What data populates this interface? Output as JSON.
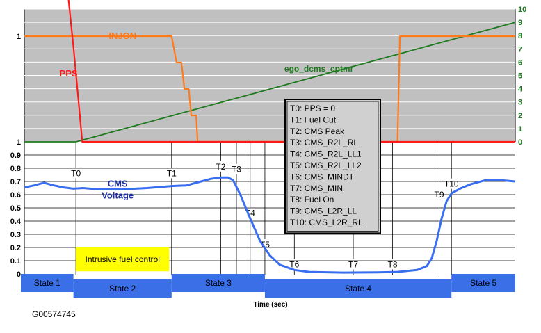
{
  "figure_id": "G00574745",
  "chart_data": {
    "type": "line",
    "xlabel": "Time (sec)",
    "y_left_upper_ticks": [
      "1",
      "0"
    ],
    "y_left_lower_ticks": [
      "1",
      "0.9",
      "0.8",
      "0.7",
      "0.6",
      "0.5",
      "0.4",
      "0.3",
      "0.2",
      "0.1",
      "0"
    ],
    "y_right_ticks": [
      "10",
      "9",
      "8",
      "7",
      "6",
      "5",
      "4",
      "3",
      "2",
      "1",
      "0"
    ],
    "xlim": [
      0,
      100
    ],
    "grid": true,
    "series": [
      {
        "name": "PPS",
        "color": "#ff1a1a",
        "axis": "left-upper",
        "points": [
          [
            9,
            1.35
          ],
          [
            10,
            0.9
          ],
          [
            11,
            0.4
          ],
          [
            11.8,
            0
          ],
          [
            100,
            0
          ]
        ]
      },
      {
        "name": "INJON",
        "color": "#ff7a1a",
        "axis": "left-upper",
        "points": [
          [
            0,
            1
          ],
          [
            30,
            1
          ],
          [
            31,
            0.75
          ],
          [
            32,
            0.75
          ],
          [
            32.6,
            0.5
          ],
          [
            33.5,
            0.5
          ],
          [
            34,
            0.25
          ],
          [
            35,
            0.25
          ],
          [
            35.3,
            0
          ],
          [
            76,
            0
          ],
          [
            76.5,
            1
          ],
          [
            100,
            1
          ]
        ]
      },
      {
        "name": "ego_dcms_cptmr",
        "color": "#1f7a1f",
        "axis": "right",
        "points": [
          [
            0,
            0
          ],
          [
            10.5,
            0
          ],
          [
            100,
            9
          ]
        ]
      },
      {
        "name": "CMS Voltage",
        "color": "#3a6ef0",
        "axis": "left-lower",
        "points": [
          [
            0,
            0.655
          ],
          [
            2,
            0.67
          ],
          [
            4,
            0.69
          ],
          [
            6,
            0.67
          ],
          [
            8,
            0.655
          ],
          [
            10,
            0.645
          ],
          [
            12,
            0.65
          ],
          [
            15,
            0.64
          ],
          [
            20,
            0.64
          ],
          [
            25,
            0.65
          ],
          [
            30,
            0.665
          ],
          [
            33,
            0.67
          ],
          [
            36,
            0.7
          ],
          [
            38,
            0.72
          ],
          [
            40,
            0.73
          ],
          [
            41.5,
            0.73
          ],
          [
            42.5,
            0.71
          ],
          [
            44,
            0.6
          ],
          [
            46,
            0.42
          ],
          [
            48,
            0.25
          ],
          [
            50,
            0.14
          ],
          [
            52,
            0.07
          ],
          [
            55,
            0.03
          ],
          [
            58,
            0.015
          ],
          [
            65,
            0.01
          ],
          [
            72,
            0.012
          ],
          [
            76,
            0.015
          ],
          [
            80,
            0.03
          ],
          [
            82,
            0.06
          ],
          [
            83,
            0.12
          ],
          [
            84,
            0.25
          ],
          [
            85,
            0.42
          ],
          [
            86,
            0.55
          ],
          [
            87,
            0.61
          ],
          [
            89,
            0.65
          ],
          [
            91,
            0.68
          ],
          [
            94,
            0.71
          ],
          [
            97,
            0.71
          ],
          [
            100,
            0.7
          ]
        ]
      }
    ],
    "annotations": {
      "pps_label": "PPS",
      "injon_label": "INJON",
      "ego_label": "ego_dcms_cptmr",
      "cms_label_1": "CMS",
      "cms_label_2": "Voltage",
      "intrusive_label": "Intrusive fuel control"
    },
    "events": [
      {
        "name": "T0",
        "x": 10.5,
        "label_y": 0.74
      },
      {
        "name": "T1",
        "x": 30,
        "label_y": 0.74
      },
      {
        "name": "T2",
        "x": 40,
        "label_y": 0.79
      },
      {
        "name": "T3",
        "x": 43.2,
        "label_y": 0.77
      },
      {
        "name": "T4",
        "x": 46,
        "label_y": 0.44
      },
      {
        "name": "T5",
        "x": 49,
        "label_y": 0.2
      },
      {
        "name": "T6",
        "x": 55,
        "label_y": 0.05
      },
      {
        "name": "T7",
        "x": 67,
        "label_y": 0.05
      },
      {
        "name": "T8",
        "x": 75,
        "label_y": 0.05
      },
      {
        "name": "T9",
        "x": 84.5,
        "label_y": 0.58
      },
      {
        "name": "T10",
        "x": 87,
        "label_y": 0.66
      }
    ],
    "legend_box": [
      "T0: PPS = 0",
      "T1: Fuel Cut",
      "T2: CMS Peak",
      "T3: CMS_R2L_RL",
      "T4: CMS_R2L_LL1",
      "T5: CMS_R2L_LL2",
      "T6: CMS_MINDT",
      "T7: CMS_MIN",
      "T8: Fuel On",
      "T9: CMS_L2R_LL",
      "T10: CMS_L2R_RL"
    ],
    "states": [
      {
        "name": "State 1",
        "x_start": 0,
        "x_end": 10,
        "row": "top"
      },
      {
        "name": "State 2",
        "x_start": 10,
        "x_end": 30,
        "row": "bottom"
      },
      {
        "name": "State 3",
        "x_start": 30,
        "x_end": 49,
        "row": "top"
      },
      {
        "name": "State 4",
        "x_start": 49,
        "x_end": 87,
        "row": "bottom"
      },
      {
        "name": "State 5",
        "x_start": 87,
        "x_end": 100,
        "row": "top"
      }
    ]
  }
}
